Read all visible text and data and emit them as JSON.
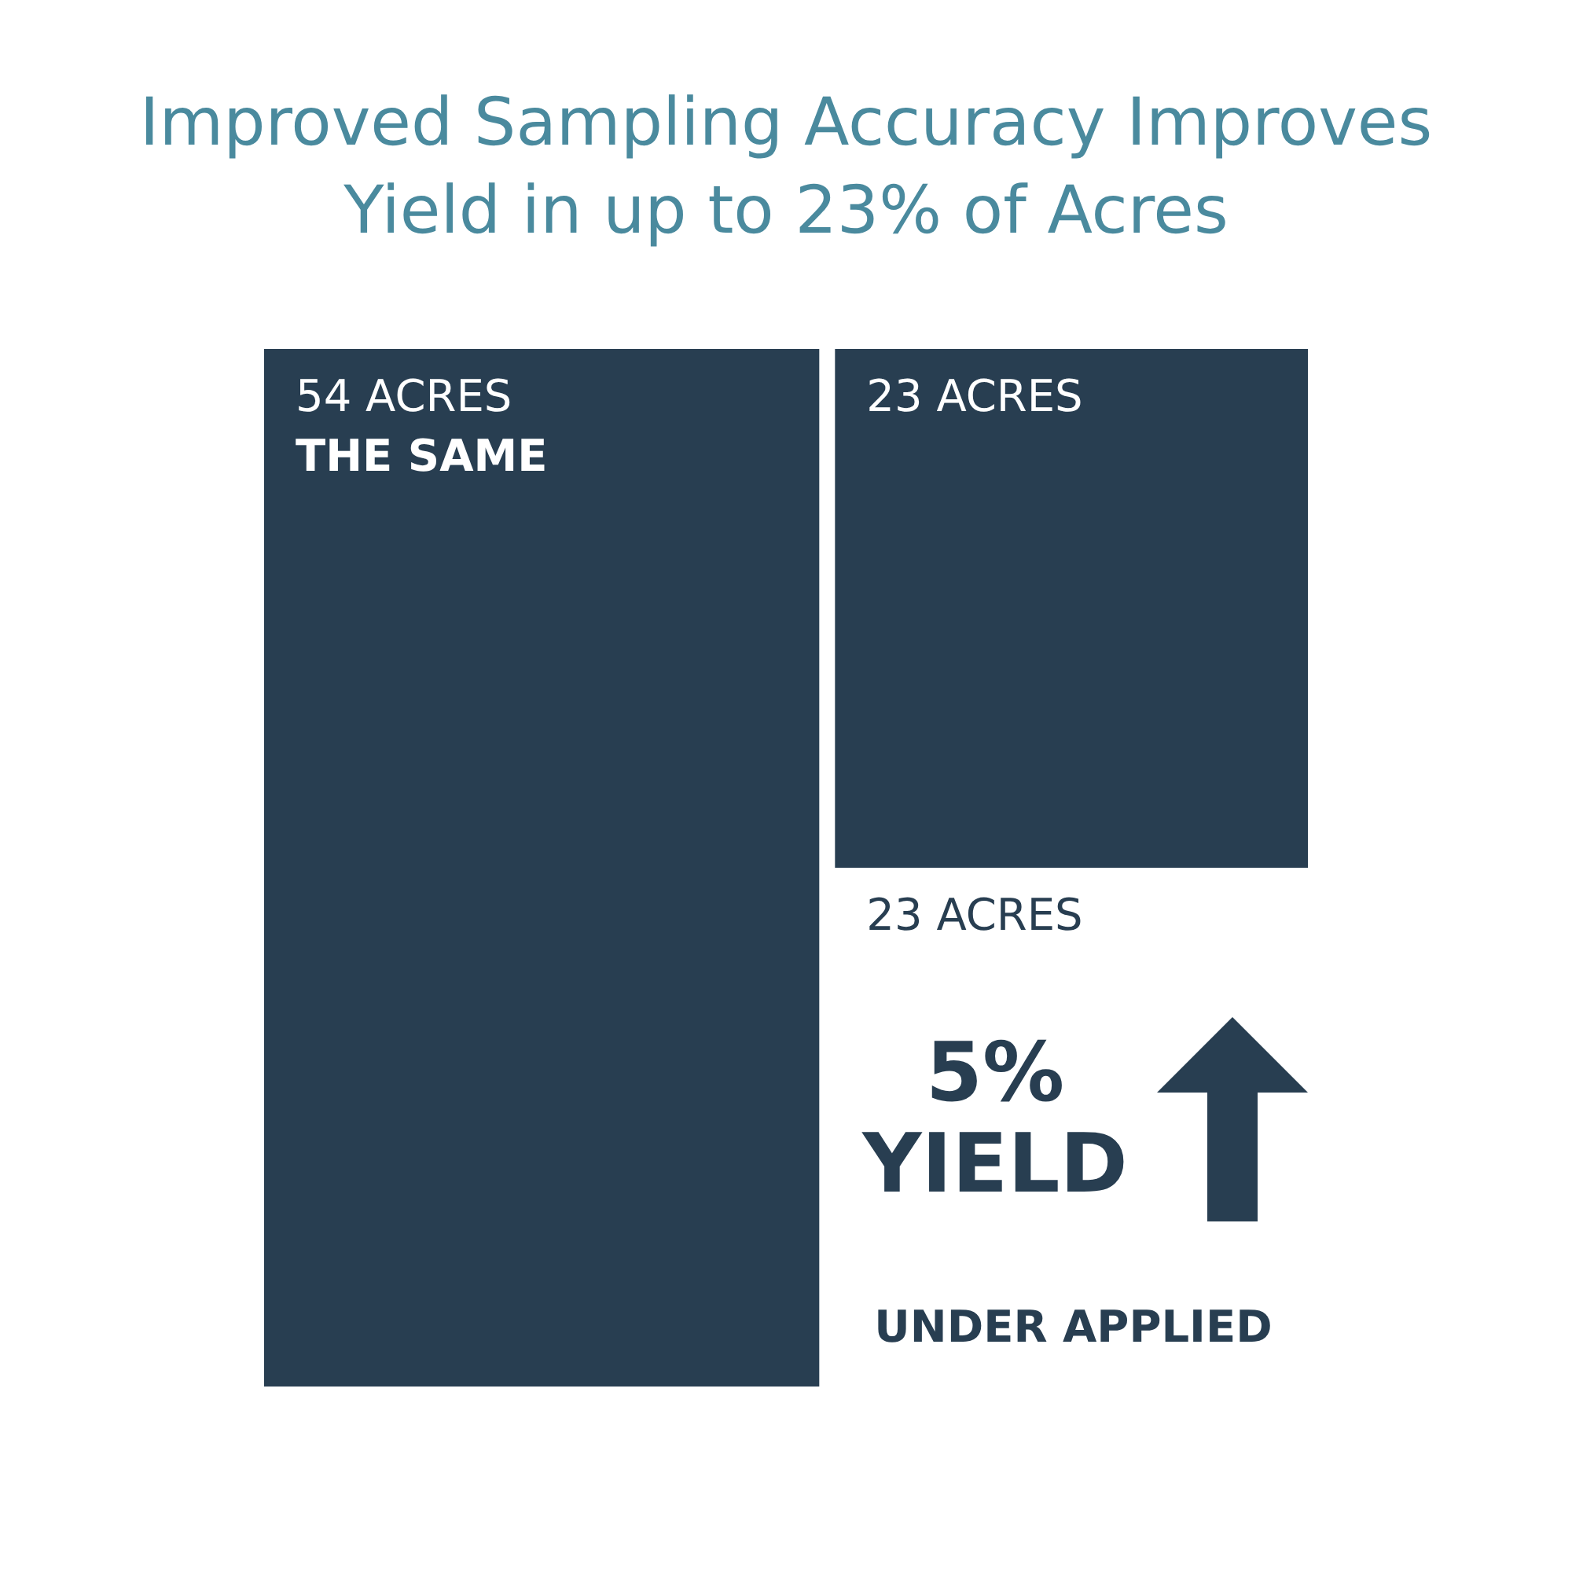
{
  "chart_data": {
    "type": "other",
    "title": "Improved Sampling Accuracy Improves Yield in up to 23% of Acres",
    "categories": [
      "THE SAME",
      null,
      "UNDER APPLIED"
    ],
    "values": [
      54,
      23,
      23
    ],
    "value_labels": [
      "54 ACRES",
      "23 ACRES",
      "23 ACRES"
    ],
    "colors": [
      "#283e51",
      "#283e51",
      "#ffffff"
    ],
    "annotations": [
      "5% YIELD"
    ]
  }
}
